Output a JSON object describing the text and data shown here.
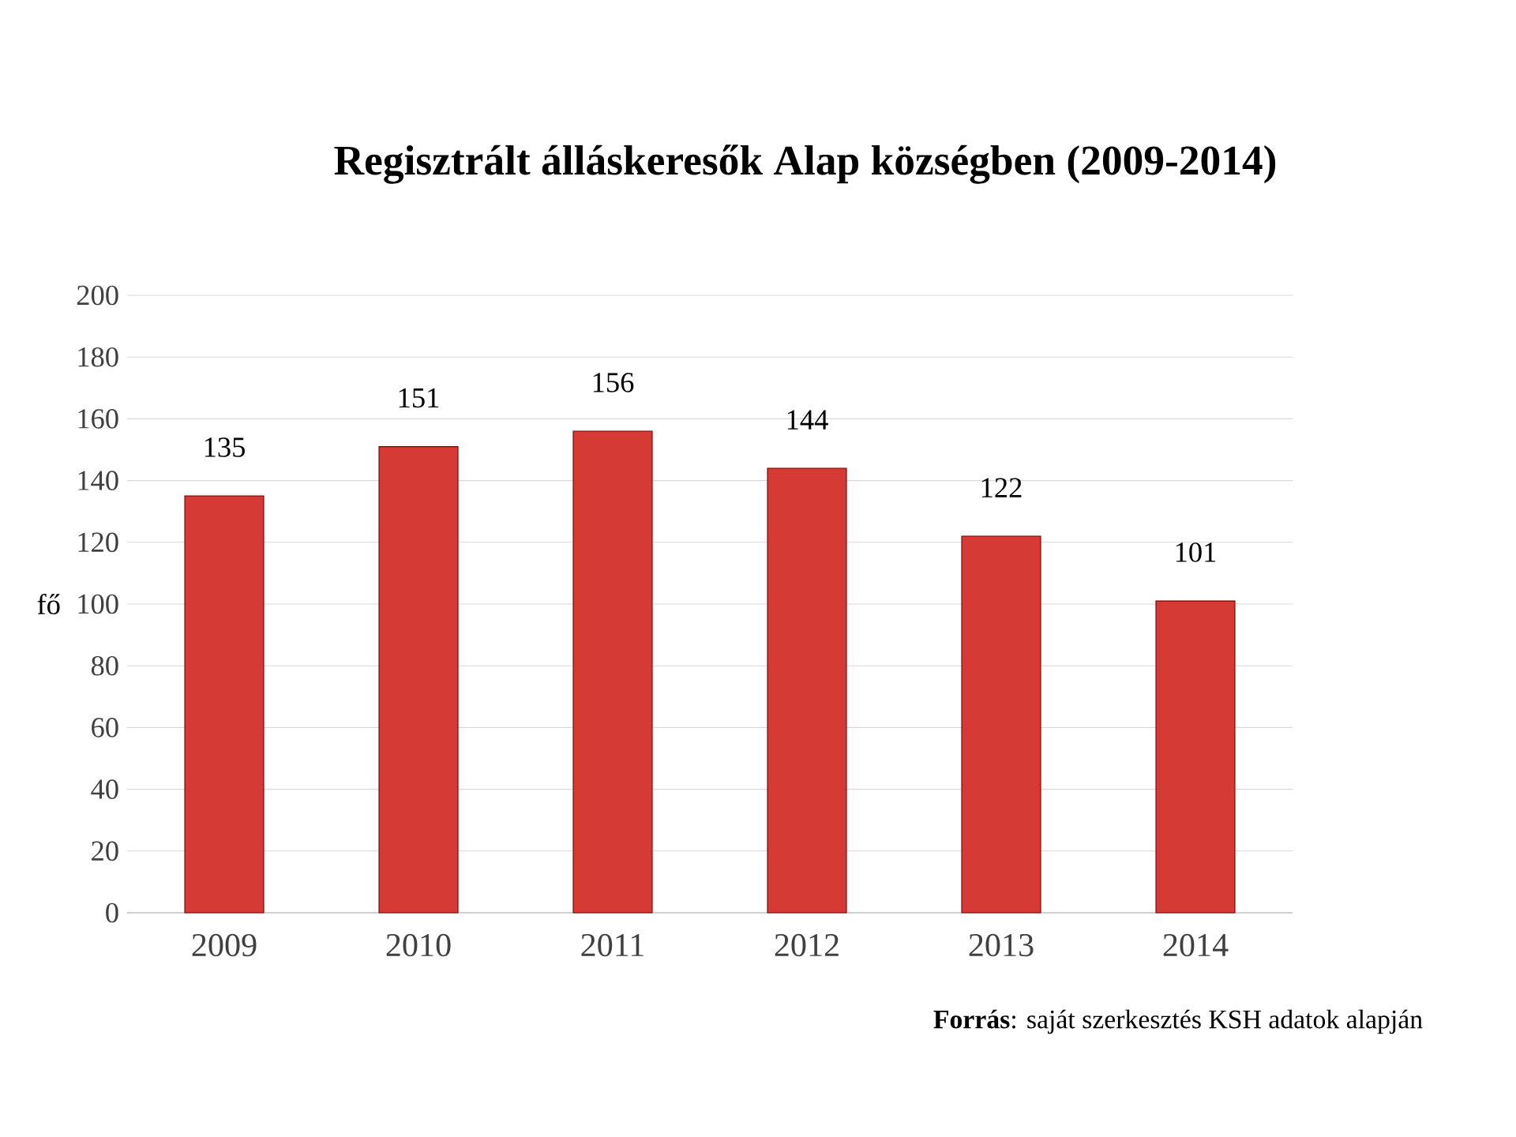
{
  "chart_data": {
    "type": "bar",
    "title": "Regisztrált álláskeresők Alap községben (2009-2014)",
    "ylabel": "fő",
    "categories": [
      "2009",
      "2010",
      "2011",
      "2012",
      "2013",
      "2014"
    ],
    "values": [
      135,
      151,
      156,
      144,
      122,
      101
    ],
    "color": "#d63a35",
    "ylim": [
      0,
      200
    ],
    "yticks": [
      0,
      20,
      40,
      60,
      80,
      100,
      120,
      140,
      160,
      180,
      200
    ],
    "grid": "y",
    "data_labels": true,
    "annotations": [
      "**Forrás**: saját szerkesztés KSH adatok alapján"
    ]
  }
}
